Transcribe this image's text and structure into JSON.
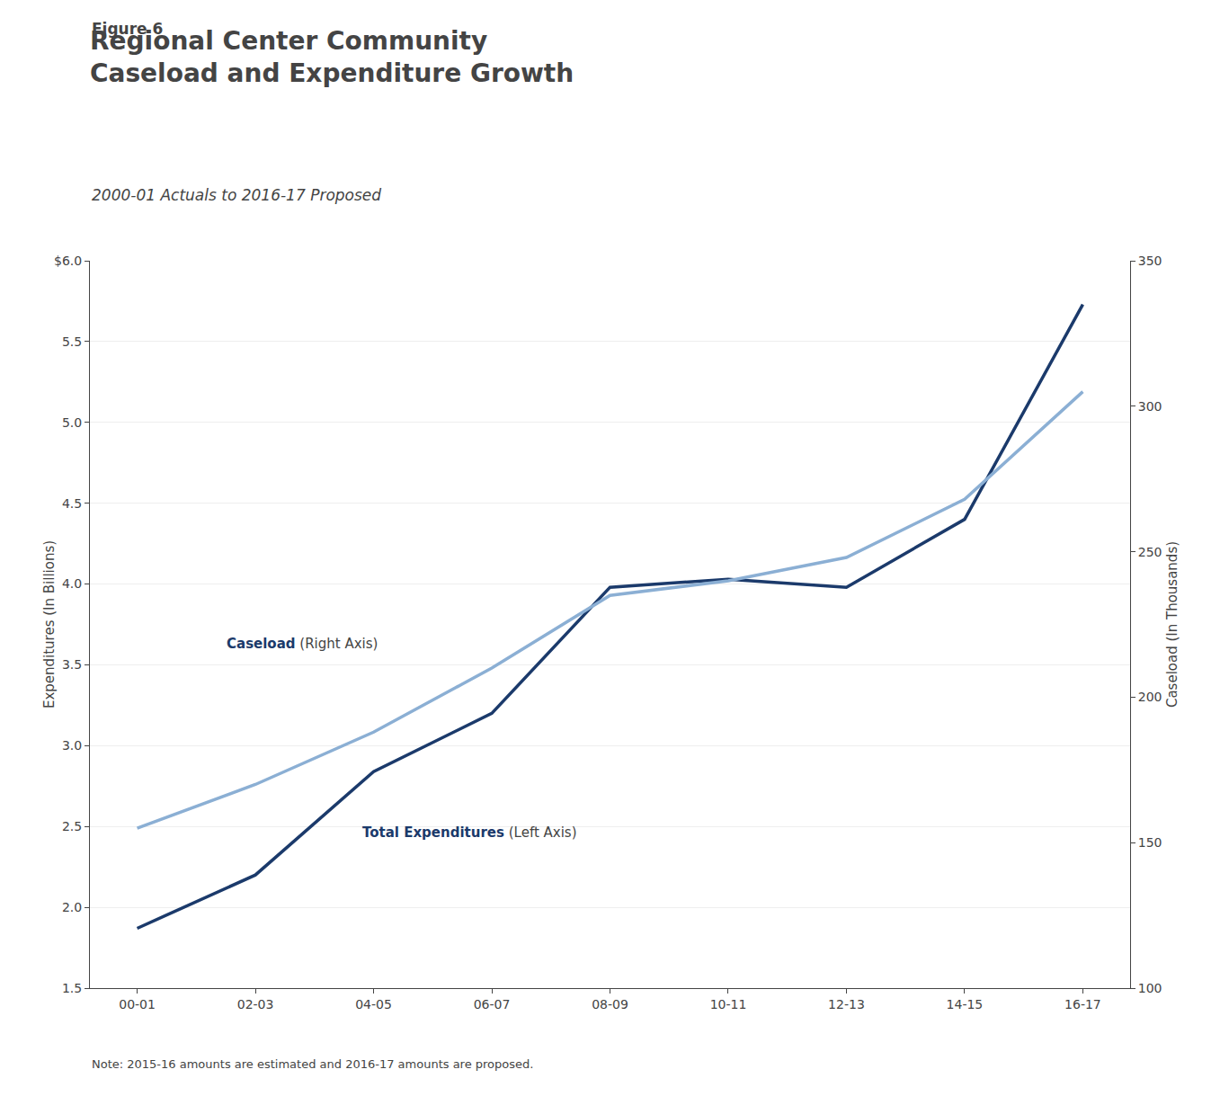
{
  "chart_data": {
    "type": "line",
    "title": "Regional Center Community\nCaseload and Expenditure Growth",
    "subtitle": "2000-01 Actuals to 2016-17 Proposed",
    "x": [
      0,
      2,
      4,
      6,
      8,
      10,
      12,
      14,
      16
    ],
    "xlim": [
      -0.8,
      16.8
    ],
    "xticks": [
      {
        "value": 0,
        "label": "00-01"
      },
      {
        "value": 2,
        "label": "02-03"
      },
      {
        "value": 4,
        "label": "04-05"
      },
      {
        "value": 6,
        "label": "06-07"
      },
      {
        "value": 8,
        "label": "08-09"
      },
      {
        "value": 10,
        "label": "10-11"
      },
      {
        "value": 12,
        "label": "12-13"
      },
      {
        "value": 14,
        "label": "14-15"
      },
      {
        "value": 16,
        "label": "16-17"
      }
    ],
    "series": [
      {
        "name": "Caseload",
        "color": "#8BAFD4",
        "axis": "y2",
        "values": [
          155,
          170,
          188,
          210,
          235,
          240,
          248,
          268,
          305
        ]
      },
      {
        "name": "Total Expenditures",
        "color": "#1B3A6B",
        "values": [
          1.87,
          2.2,
          2.84,
          3.2,
          3.98,
          4.03,
          3.98,
          4.4,
          5.73
        ]
      }
    ],
    "ylabel": "Expenditures (In Billions)",
    "y2label": "Caseload (In Thousands)",
    "ylim": [
      1.5,
      6.0
    ],
    "yticks": [
      1.5,
      {
        "value": 2.0,
        "label": "2.0"
      },
      2.5,
      {
        "value": 3.0,
        "label": "3.0"
      },
      3.5,
      {
        "value": 4.0,
        "label": "4.0"
      },
      4.5,
      {
        "value": 5.0,
        "label": "5.0"
      },
      5.5,
      {
        "value": 6.0,
        "label": "$6.0"
      }
    ],
    "y2lim": [
      100,
      350
    ],
    "y2ticks": [
      100,
      150,
      200,
      250,
      300,
      350
    ],
    "grid": true,
    "annotations": [
      "Figure 6",
      "Caseload",
      "(Right Axis)",
      "Total Expenditures",
      "(Left Axis)",
      "Note: 2015-16 amounts are estimated and 2016-17 amounts are proposed."
    ]
  }
}
